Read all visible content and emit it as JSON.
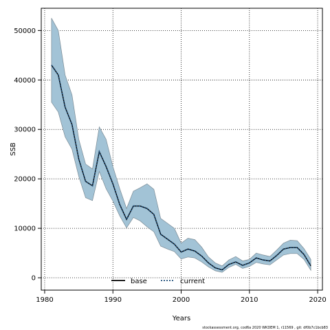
{
  "chart_data": {
    "type": "line",
    "xlabel": "Years",
    "ylabel": "SSB",
    "xlim": [
      1979.5,
      2020.7
    ],
    "ylim": [
      -2500,
      54500
    ],
    "xticks": [
      1980,
      1990,
      2000,
      2010,
      2020
    ],
    "yticks": [
      0,
      10000,
      20000,
      30000,
      40000,
      50000
    ],
    "grid": true,
    "legend_position": "bottom-center",
    "x": [
      1981,
      1982,
      1983,
      1984,
      1985,
      1986,
      1987,
      1988,
      1989,
      1990,
      1991,
      1992,
      1993,
      1994,
      1995,
      1996,
      1997,
      1998,
      1999,
      2000,
      2001,
      2002,
      2003,
      2004,
      2005,
      2006,
      2007,
      2008,
      2009,
      2010,
      2011,
      2012,
      2013,
      2014,
      2015,
      2016,
      2017,
      2018,
      2019
    ],
    "band": {
      "color": "#a2c3d6",
      "edge_color": "#7a8a94",
      "upper": [
        52500,
        50000,
        41000,
        37000,
        28000,
        23000,
        22000,
        30500,
        28000,
        22500,
        18000,
        14000,
        17500,
        18200,
        19000,
        17900,
        12000,
        11000,
        10000,
        7000,
        8000,
        7700,
        6200,
        4200,
        3000,
        2400,
        3600,
        4300,
        3400,
        3700,
        5000,
        4600,
        4300,
        5600,
        7000,
        7600,
        7500,
        5900,
        3700
      ],
      "lower": [
        35500,
        33500,
        28500,
        26000,
        20500,
        16200,
        15600,
        21500,
        18000,
        15500,
        12500,
        10100,
        12200,
        11500,
        10300,
        9300,
        6400,
        5800,
        5300,
        3800,
        4200,
        4000,
        3200,
        2200,
        1400,
        1100,
        2100,
        2700,
        1900,
        2300,
        3100,
        2800,
        2600,
        3600,
        4600,
        4900,
        4900,
        3700,
        1500
      ]
    },
    "series": [
      {
        "name": "base",
        "color": "#000000",
        "style": "solid",
        "values": [
          43000,
          41000,
          34500,
          31000,
          24000,
          19500,
          18600,
          25500,
          22500,
          19000,
          14800,
          11800,
          14500,
          14500,
          14000,
          12800,
          8800,
          7800,
          6800,
          5200,
          5800,
          5400,
          4400,
          3000,
          2000,
          1600,
          2700,
          3200,
          2500,
          3000,
          4000,
          3600,
          3400,
          4500,
          5800,
          6100,
          6100,
          4700,
          2400
        ]
      },
      {
        "name": "current",
        "color": "#1f4e79",
        "style": "dotted",
        "values": [
          43000,
          41000,
          34500,
          31000,
          24000,
          19500,
          18600,
          25500,
          22500,
          19000,
          14800,
          11800,
          14500,
          14500,
          14000,
          12800,
          8800,
          7800,
          6800,
          5200,
          5800,
          5400,
          4400,
          3000,
          2000,
          1600,
          2700,
          3200,
          2500,
          3000,
          4000,
          3600,
          3400,
          4500,
          5800,
          6100,
          6100,
          4700,
          2400
        ]
      }
    ],
    "footnote": "stockassessment.org,  cod6a  2020  WKDEM  1,  r11569  ,  git:  df0b7c1bcb83"
  }
}
